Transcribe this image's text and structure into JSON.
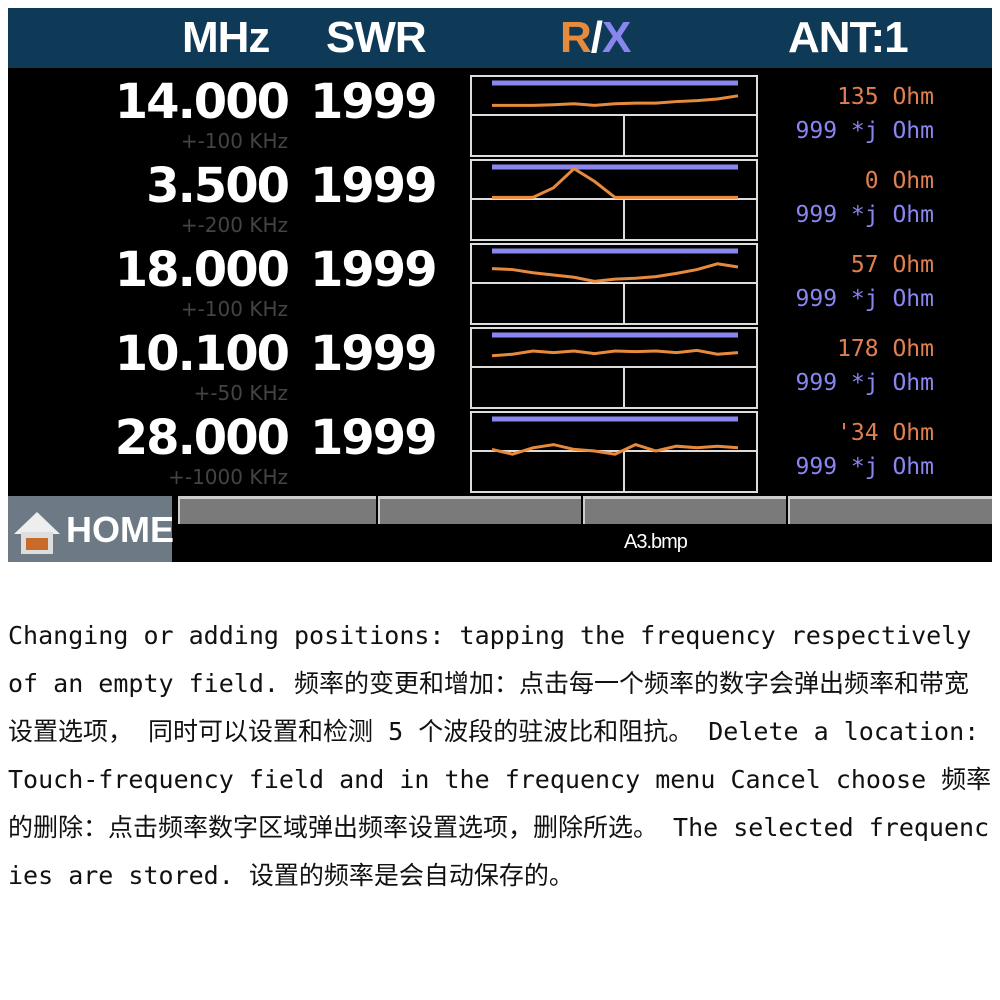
{
  "header": {
    "mhz": "MHz",
    "swr": "SWR",
    "r": "R",
    "slash": "/",
    "x": "X",
    "ant": "ANT:1"
  },
  "colors": {
    "header_bg": "#0e3a58",
    "r_color": "#e88a3c",
    "x_color": "#8a86f0"
  },
  "rows": [
    {
      "freq": "14.000",
      "swr": "1999",
      "bandwidth": "+-100 KHz",
      "r": "135 Ohm",
      "x": "999 *j Ohm",
      "r_trace": [
        0.3,
        0.3,
        0.3,
        0.32,
        0.35,
        0.3,
        0.35,
        0.37,
        0.37,
        0.42,
        0.45,
        0.5,
        0.6
      ]
    },
    {
      "freq": "3.500",
      "swr": "1999",
      "bandwidth": "+-200 KHz",
      "r": "0 Ohm",
      "x": "999 *j Ohm",
      "r_trace": [
        0.05,
        0.05,
        0.05,
        0.35,
        0.95,
        0.55,
        0.05,
        0.05,
        0.05,
        0.05,
        0.05,
        0.05,
        0.05
      ]
    },
    {
      "freq": "18.000",
      "swr": "1999",
      "bandwidth": "+-100 KHz",
      "r": "57 Ohm",
      "x": "999 *j Ohm",
      "r_trace": [
        0.45,
        0.42,
        0.32,
        0.25,
        0.18,
        0.05,
        0.12,
        0.15,
        0.2,
        0.3,
        0.42,
        0.6,
        0.5
      ]
    },
    {
      "freq": "10.100",
      "swr": "1999",
      "bandwidth": "+-50 KHz",
      "r": "178 Ohm",
      "x": "999 *j Ohm",
      "r_trace": [
        0.35,
        0.4,
        0.5,
        0.45,
        0.5,
        0.42,
        0.5,
        0.48,
        0.5,
        0.45,
        0.52,
        0.4,
        0.45
      ]
    },
    {
      "freq": "28.000",
      "swr": "1999",
      "bandwidth": "+-1000 KHz",
      "r": "'34 Ohm",
      "x": "999 *j Ohm",
      "r_trace": [
        0.05,
        -0.1,
        0.1,
        0.2,
        0.05,
        0.0,
        -0.1,
        0.2,
        0.0,
        0.15,
        0.1,
        0.15,
        0.1
      ]
    }
  ],
  "footer": {
    "home": "HOME",
    "filename": "A3.bmp"
  },
  "description": "Changing or adding positions: tapping the frequency respectively of an empty field. 频率的变更和增加：点击每一个频率的数字会弹出频率和带宽设置选项， 同时可以设置和检测 5 个波段的驻波比和阻抗。 Delete a location: Touch-frequency field and in the frequency menu Cancel choose 频率的删除：点击频率数字区域弹出频率设置选项，删除所选。 The selected frequencies are stored. 设置的频率是会自动保存的。"
}
